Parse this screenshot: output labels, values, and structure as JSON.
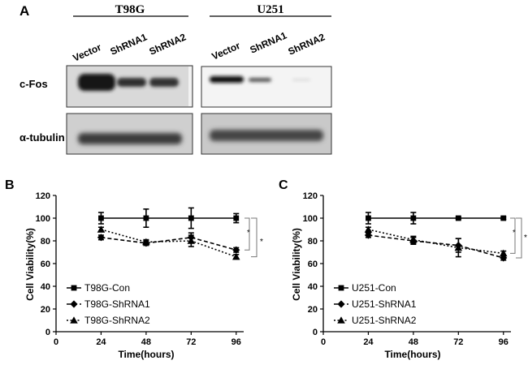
{
  "panel_a": {
    "letter": "A",
    "groups": [
      {
        "name": "T98G",
        "lanes": [
          "Vector",
          "ShRNA1",
          "ShRNA2"
        ]
      },
      {
        "name": "U251",
        "lanes": [
          "Vector",
          "ShRNA1",
          "ShRNA2"
        ]
      }
    ],
    "blots": [
      {
        "label": "c-Fos"
      },
      {
        "label": "α-tubulin"
      }
    ]
  },
  "chart_data": [
    {
      "panel_letter": "B",
      "type": "line",
      "xlabel": "Time(hours)",
      "ylabel": "Cell Viability(%)",
      "xlim": [
        0,
        100
      ],
      "ylim": [
        0,
        120
      ],
      "xticks": [
        0,
        24,
        48,
        72,
        96
      ],
      "yticks": [
        0,
        20,
        40,
        60,
        80,
        100,
        120
      ],
      "grid": false,
      "legend_position": "bottom-left",
      "significance": [
        "*",
        "*"
      ],
      "series": [
        {
          "name": "T98G-Con",
          "marker": "square",
          "line": "solid",
          "x": [
            24,
            48,
            72,
            96
          ],
          "values": [
            100,
            100,
            100,
            100
          ],
          "errors": [
            5,
            8,
            9,
            4
          ]
        },
        {
          "name": "T98G-ShRNA1",
          "marker": "diamond",
          "line": "dashed",
          "x": [
            24,
            48,
            72,
            96
          ],
          "values": [
            83,
            78,
            83,
            72
          ],
          "errors": [
            2,
            2,
            4,
            2
          ]
        },
        {
          "name": "T98G-ShRNA2",
          "marker": "triangle",
          "line": "dotted",
          "x": [
            24,
            48,
            72,
            96
          ],
          "values": [
            90,
            79,
            80,
            66
          ],
          "errors": [
            2,
            2,
            5,
            2
          ]
        }
      ]
    },
    {
      "panel_letter": "C",
      "type": "line",
      "xlabel": "Time(hours)",
      "ylabel": "Cell Viability(%)",
      "xlim": [
        0,
        100
      ],
      "ylim": [
        0,
        120
      ],
      "xticks": [
        0,
        24,
        48,
        72,
        96
      ],
      "yticks": [
        0,
        20,
        40,
        60,
        80,
        100,
        120
      ],
      "grid": false,
      "legend_position": "bottom-left",
      "significance": [
        "*",
        "*"
      ],
      "series": [
        {
          "name": "U251-Con",
          "marker": "square",
          "line": "solid",
          "x": [
            24,
            48,
            72,
            96
          ],
          "values": [
            100,
            100,
            100,
            100
          ],
          "errors": [
            5,
            5,
            1,
            1
          ]
        },
        {
          "name": "U251-ShRNA1",
          "marker": "diamond",
          "line": "dashed",
          "x": [
            24,
            48,
            72,
            96
          ],
          "values": [
            85,
            80,
            76,
            65
          ],
          "errors": [
            2,
            3,
            6,
            2
          ]
        },
        {
          "name": "U251-ShRNA2",
          "marker": "triangle",
          "line": "dotted",
          "x": [
            24,
            48,
            72,
            96
          ],
          "values": [
            90,
            81,
            74,
            69
          ],
          "errors": [
            2,
            3,
            8,
            2
          ]
        }
      ]
    }
  ]
}
